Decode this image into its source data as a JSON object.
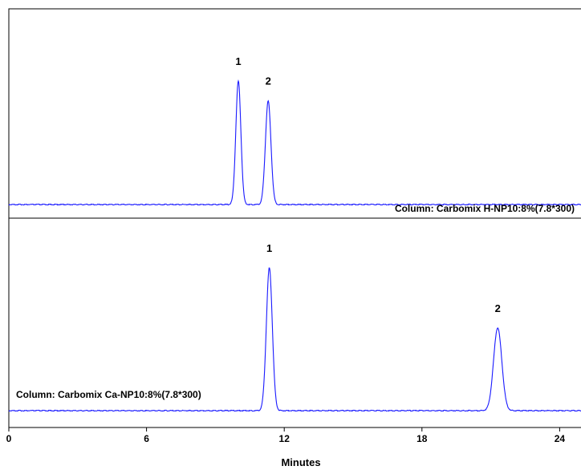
{
  "chart_data": {
    "type": "line",
    "title": "",
    "xlabel": "Minutes",
    "ylabel": "",
    "xlim": [
      0,
      25
    ],
    "x_ticks": [
      "0",
      "6",
      "12",
      "18",
      "24"
    ],
    "grid": false,
    "colors": {
      "trace": "#1a1aff",
      "axis": "#000000",
      "text": "#000000"
    },
    "series": [
      {
        "name": "Column: Carbomix H-NP10:8%(7.8*300)",
        "baseline": 0,
        "peaks": [
          {
            "label": "1",
            "x": 10.0,
            "height": 100,
            "width": 0.11
          },
          {
            "label": "2",
            "x": 11.3,
            "height": 84,
            "width": 0.12
          }
        ]
      },
      {
        "name": "Column: Carbomix Ca-NP10:8%(7.8*300)",
        "baseline": 0,
        "peaks": [
          {
            "label": "1",
            "x": 11.35,
            "height": 100,
            "width": 0.13
          },
          {
            "label": "2",
            "x": 21.3,
            "height": 58,
            "width": 0.18
          }
        ]
      }
    ]
  }
}
